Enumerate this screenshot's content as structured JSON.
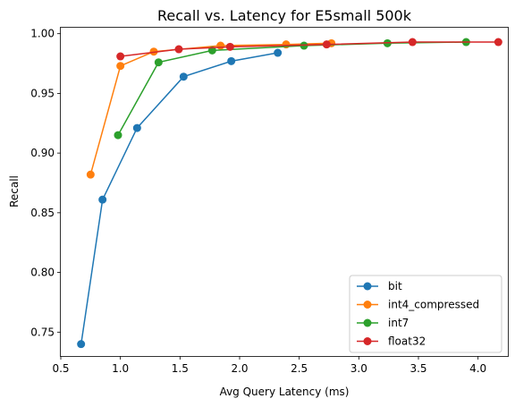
{
  "chart_data": {
    "type": "line",
    "title": "Recall vs. Latency for E5small 500k",
    "xlabel": "Avg Query Latency (ms)",
    "ylabel": "Recall",
    "xlim": [
      0.5,
      4.25
    ],
    "ylim": [
      0.73,
      1.005
    ],
    "x_ticks": [
      "0.5",
      "1.0",
      "1.5",
      "2.0",
      "2.5",
      "3.0",
      "3.5",
      "4.0"
    ],
    "y_ticks": [
      "0.75",
      "0.80",
      "0.85",
      "0.90",
      "0.95",
      "1.00"
    ],
    "grid": false,
    "legend_position": "lower-right",
    "marker": "circle",
    "series": [
      {
        "name": "bit",
        "color": "#1f77b4",
        "points": [
          {
            "x": 0.67,
            "y": 0.74
          },
          {
            "x": 0.85,
            "y": 0.861
          },
          {
            "x": 1.14,
            "y": 0.921
          },
          {
            "x": 1.53,
            "y": 0.964
          },
          {
            "x": 1.93,
            "y": 0.977
          },
          {
            "x": 2.32,
            "y": 0.984
          }
        ]
      },
      {
        "name": "int4_compressed",
        "color": "#ff7f0e",
        "points": [
          {
            "x": 0.75,
            "y": 0.882
          },
          {
            "x": 1.0,
            "y": 0.973
          },
          {
            "x": 1.28,
            "y": 0.985
          },
          {
            "x": 1.84,
            "y": 0.99
          },
          {
            "x": 2.39,
            "y": 0.991
          },
          {
            "x": 2.77,
            "y": 0.992
          }
        ]
      },
      {
        "name": "int7",
        "color": "#2ca02c",
        "points": [
          {
            "x": 0.98,
            "y": 0.915
          },
          {
            "x": 1.32,
            "y": 0.976
          },
          {
            "x": 1.77,
            "y": 0.986
          },
          {
            "x": 2.54,
            "y": 0.99
          },
          {
            "x": 3.24,
            "y": 0.992
          },
          {
            "x": 3.9,
            "y": 0.993
          }
        ]
      },
      {
        "name": "float32",
        "color": "#d62728",
        "points": [
          {
            "x": 1.0,
            "y": 0.981
          },
          {
            "x": 1.49,
            "y": 0.987
          },
          {
            "x": 1.92,
            "y": 0.989
          },
          {
            "x": 2.73,
            "y": 0.991
          },
          {
            "x": 3.45,
            "y": 0.993
          },
          {
            "x": 4.17,
            "y": 0.993
          }
        ]
      }
    ]
  }
}
